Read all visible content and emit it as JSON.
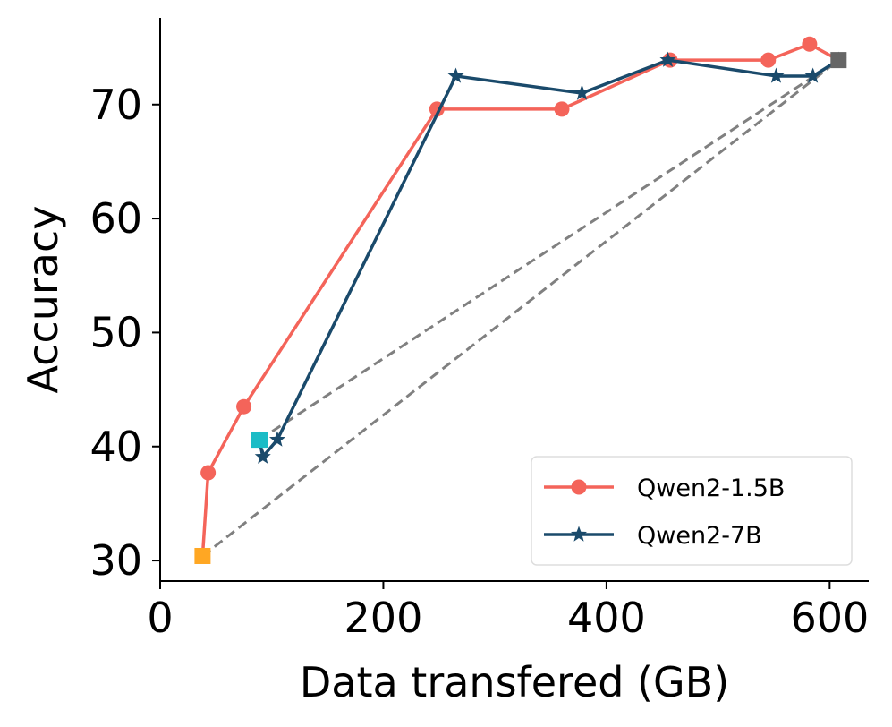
{
  "chart_data": {
    "type": "line",
    "title": "",
    "xlabel": "Data transfered (GB)",
    "ylabel": "Accuracy",
    "xlim": [
      0,
      635
    ],
    "ylim": [
      28.2,
      77.6
    ],
    "xticks": [
      0,
      200,
      400,
      600
    ],
    "yticks": [
      30,
      40,
      50,
      60,
      70
    ],
    "grid": false,
    "legend_position": "lower-right",
    "series": [
      {
        "name": "Qwen2-1.5B",
        "color": "#f4645a",
        "marker": "circle",
        "x": [
          38,
          43,
          75,
          248,
          360,
          457,
          545,
          582,
          608
        ],
        "y": [
          30.4,
          37.7,
          43.5,
          69.6,
          69.6,
          73.9,
          73.9,
          75.3,
          73.9
        ]
      },
      {
        "name": "Qwen2-7B",
        "color": "#1a4a6b",
        "marker": "star",
        "x": [
          89,
          92,
          105,
          265,
          378,
          455,
          552,
          585,
          608
        ],
        "y": [
          40.6,
          39.1,
          40.6,
          72.5,
          71.0,
          73.9,
          72.5,
          72.5,
          73.9
        ]
      }
    ],
    "special_points": [
      {
        "name": "start-qwen2-1.5b",
        "x": 38,
        "y": 30.4,
        "color": "#ffa723",
        "marker": "square"
      },
      {
        "name": "start-qwen2-7b",
        "x": 89,
        "y": 40.6,
        "color": "#1bbcc6",
        "marker": "square"
      },
      {
        "name": "end",
        "x": 608,
        "y": 73.9,
        "color": "#666666",
        "marker": "square"
      }
    ],
    "dashed_lines": [
      {
        "from": [
          38,
          30.4
        ],
        "to": [
          608,
          73.9
        ],
        "color": "#808080"
      },
      {
        "from": [
          89,
          40.6
        ],
        "to": [
          608,
          73.9
        ],
        "color": "#808080"
      }
    ]
  }
}
